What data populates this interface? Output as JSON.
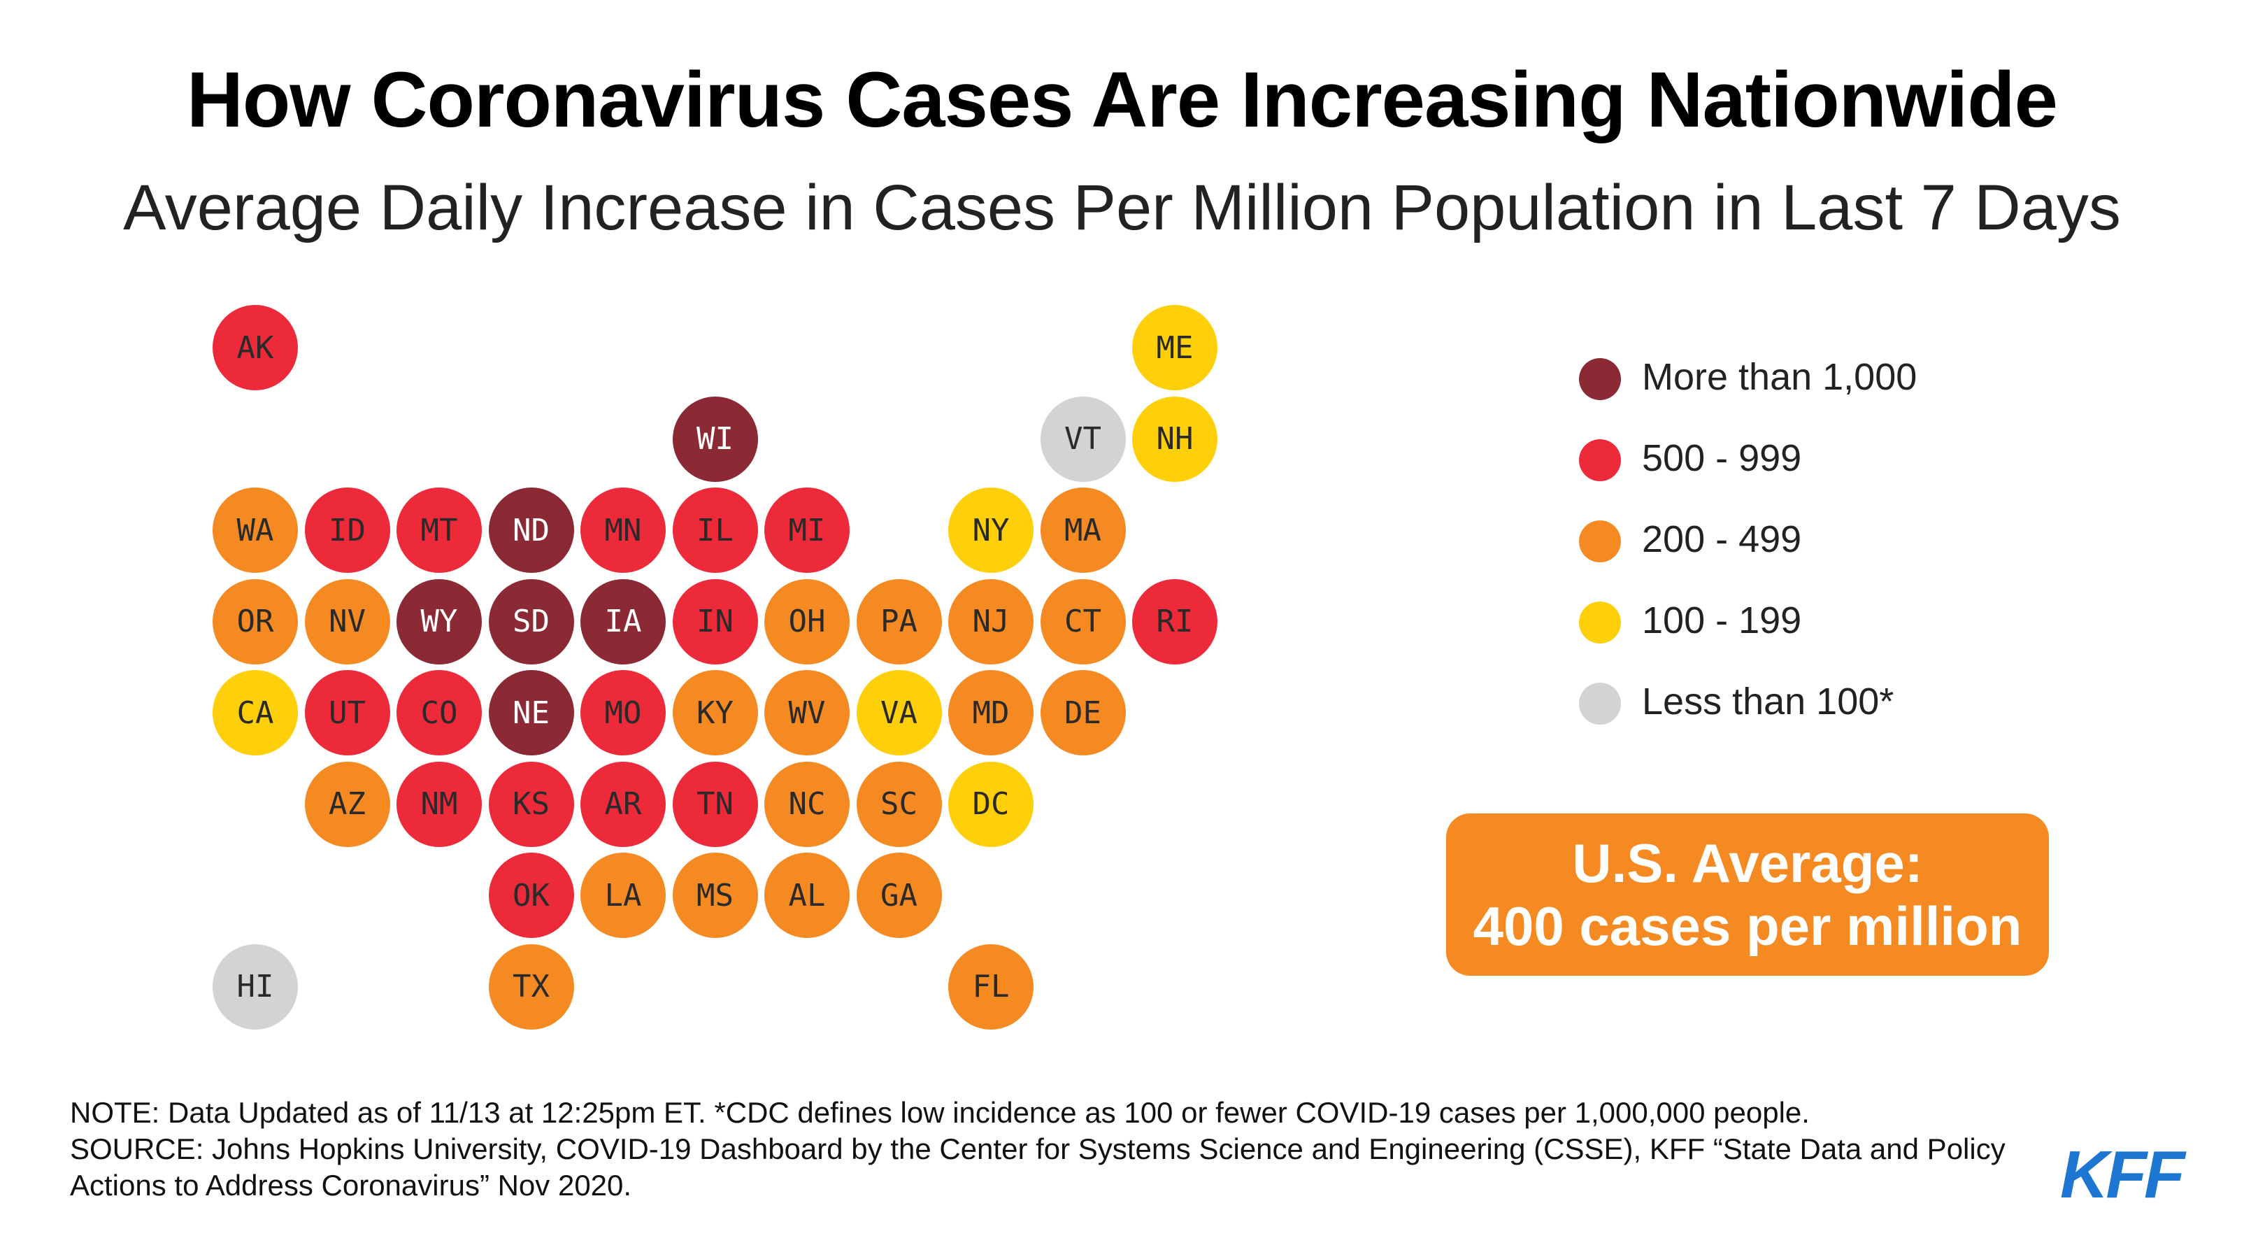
{
  "title": "How Coronavirus Cases Are Increasing Nationwide",
  "subtitle": "Average Daily Increase in Cases Per Million Population in Last 7 Days",
  "colors": {
    "more_than_1000": "#8B2A35",
    "500_999": "#EC2A3A",
    "200_499": "#F58A23",
    "100_199": "#FFCF0A",
    "less_than_100": "#D3D3D3"
  },
  "legend": [
    {
      "key": "more_than_1000",
      "label": "More than 1,000"
    },
    {
      "key": "500_999",
      "label": "500 - 999"
    },
    {
      "key": "200_499",
      "label": "200 - 499"
    },
    {
      "key": "100_199",
      "label": "100 - 199"
    },
    {
      "key": "less_than_100",
      "label": "Less than 100*"
    }
  ],
  "us_average": {
    "line1": "U.S. Average:",
    "line2": "400 cases per million"
  },
  "notes": {
    "note": "NOTE: Data Updated as of 11/13 at 12:25pm ET. *CDC defines low incidence as 100 or fewer COVID-19 cases per 1,000,000 people.",
    "source": "SOURCE: Johns Hopkins University, COVID-19 Dashboard by the Center for Systems Science and Engineering (CSSE), KFF “State Data and Policy Actions to Address Coronavirus” Nov 2020."
  },
  "logo": "KFF",
  "chart_data": {
    "type": "tile-map",
    "states": [
      {
        "state": "AK",
        "category": "500_999"
      },
      {
        "state": "ME",
        "category": "100_199"
      },
      {
        "state": "WI",
        "category": "more_than_1000"
      },
      {
        "state": "VT",
        "category": "less_than_100"
      },
      {
        "state": "NH",
        "category": "100_199"
      },
      {
        "state": "WA",
        "category": "200_499"
      },
      {
        "state": "ID",
        "category": "500_999"
      },
      {
        "state": "MT",
        "category": "500_999"
      },
      {
        "state": "ND",
        "category": "more_than_1000"
      },
      {
        "state": "MN",
        "category": "500_999"
      },
      {
        "state": "IL",
        "category": "500_999"
      },
      {
        "state": "MI",
        "category": "500_999"
      },
      {
        "state": "NY",
        "category": "100_199"
      },
      {
        "state": "MA",
        "category": "200_499"
      },
      {
        "state": "OR",
        "category": "200_499"
      },
      {
        "state": "NV",
        "category": "200_499"
      },
      {
        "state": "WY",
        "category": "more_than_1000"
      },
      {
        "state": "SD",
        "category": "more_than_1000"
      },
      {
        "state": "IA",
        "category": "more_than_1000"
      },
      {
        "state": "IN",
        "category": "500_999"
      },
      {
        "state": "OH",
        "category": "200_499"
      },
      {
        "state": "PA",
        "category": "200_499"
      },
      {
        "state": "NJ",
        "category": "200_499"
      },
      {
        "state": "CT",
        "category": "200_499"
      },
      {
        "state": "RI",
        "category": "500_999"
      },
      {
        "state": "CA",
        "category": "100_199"
      },
      {
        "state": "UT",
        "category": "500_999"
      },
      {
        "state": "CO",
        "category": "500_999"
      },
      {
        "state": "NE",
        "category": "more_than_1000"
      },
      {
        "state": "MO",
        "category": "500_999"
      },
      {
        "state": "KY",
        "category": "200_499"
      },
      {
        "state": "WV",
        "category": "200_499"
      },
      {
        "state": "VA",
        "category": "100_199"
      },
      {
        "state": "MD",
        "category": "200_499"
      },
      {
        "state": "DE",
        "category": "200_499"
      },
      {
        "state": "AZ",
        "category": "200_499"
      },
      {
        "state": "NM",
        "category": "500_999"
      },
      {
        "state": "KS",
        "category": "500_999"
      },
      {
        "state": "AR",
        "category": "500_999"
      },
      {
        "state": "TN",
        "category": "500_999"
      },
      {
        "state": "NC",
        "category": "200_499"
      },
      {
        "state": "SC",
        "category": "200_499"
      },
      {
        "state": "DC",
        "category": "100_199"
      },
      {
        "state": "OK",
        "category": "500_999"
      },
      {
        "state": "LA",
        "category": "200_499"
      },
      {
        "state": "MS",
        "category": "200_499"
      },
      {
        "state": "AL",
        "category": "200_499"
      },
      {
        "state": "GA",
        "category": "200_499"
      },
      {
        "state": "HI",
        "category": "less_than_100"
      },
      {
        "state": "TX",
        "category": "200_499"
      },
      {
        "state": "FL",
        "category": "200_499"
      }
    ]
  }
}
